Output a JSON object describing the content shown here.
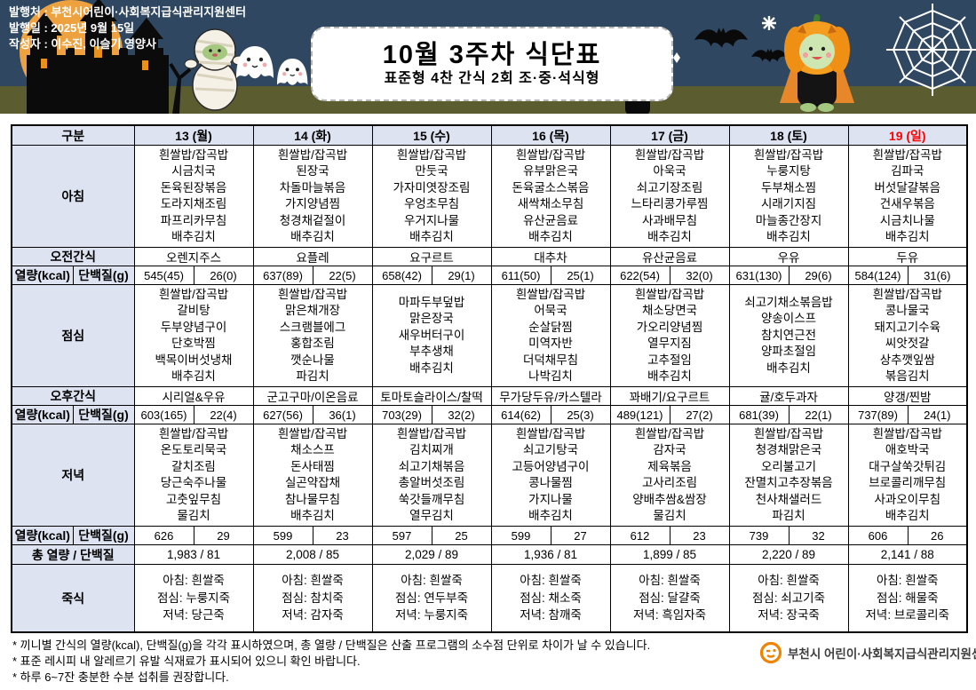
{
  "header": {
    "publisher_lines": [
      "발행처 : 부천시어린이·사회복지급식관리지원센터",
      "발행일 : 2025년 9월 15일",
      "작성자 : 이수진, 이슬기 영양사"
    ],
    "title": "10월 3주차 식단표",
    "subtitle": "표준형 4찬 간식 2회 조·중·석식형",
    "decor_icons": [
      "moon-icon",
      "castle-icon",
      "mummy-icon",
      "ghost-icon",
      "bat-icon",
      "sparkle-icon",
      "zombie-hand-icon",
      "pumpkin-character-icon",
      "spider-web-icon"
    ]
  },
  "table": {
    "corner_label": "구분",
    "row_labels": {
      "breakfast": "아침",
      "am_snack": "오전간식",
      "kcal": "열량(kcal)",
      "protein": "단백질(g)",
      "lunch": "점심",
      "pm_snack": "오후간식",
      "dinner": "저녁",
      "total": "총 열량 / 단백질",
      "porridge": "죽식"
    },
    "days": [
      {
        "label": "13 (월)",
        "is_holiday": false,
        "breakfast": [
          "흰쌀밥/잡곡밥",
          "시금치국",
          "돈육된장볶음",
          "도라지채조림",
          "파프리카무침",
          "배추김치"
        ],
        "am_snack": "오렌지주스",
        "breakfast_kcal": "545(45)",
        "breakfast_protein": "26(0)",
        "lunch": [
          "흰쌀밥/잡곡밥",
          "갈비탕",
          "두부양념구이",
          "단호박찜",
          "백목이버섯냉채",
          "배추김치"
        ],
        "pm_snack": "시리얼&우유",
        "lunch_kcal": "603(165)",
        "lunch_protein": "22(4)",
        "dinner": [
          "흰쌀밥/잡곡밥",
          "온도토리묵국",
          "갈치조림",
          "당근숙주나물",
          "고춧잎무침",
          "물김치"
        ],
        "dinner_kcal": "626",
        "dinner_protein": "29",
        "total": "1,983  /  81",
        "porridge": [
          "아침: 흰쌀죽",
          "점심: 누룽지죽",
          "저녁: 당근죽"
        ]
      },
      {
        "label": "14 (화)",
        "is_holiday": false,
        "breakfast": [
          "흰쌀밥/잡곡밥",
          "된장국",
          "차돌마늘볶음",
          "가지양념찜",
          "청경채겉절이",
          "배추김치"
        ],
        "am_snack": "요플레",
        "breakfast_kcal": "637(89)",
        "breakfast_protein": "22(5)",
        "lunch": [
          "흰쌀밥/잡곡밥",
          "맑은채개장",
          "스크램블에그",
          "홍합조림",
          "깻순나물",
          "파김치"
        ],
        "pm_snack": "군고구마/이온음료",
        "lunch_kcal": "627(56)",
        "lunch_protein": "36(1)",
        "dinner": [
          "흰쌀밥/잡곡밥",
          "채소스프",
          "돈사태찜",
          "실곤약잡채",
          "참나물무침",
          "배추김치"
        ],
        "dinner_kcal": "599",
        "dinner_protein": "23",
        "total": "2,008  /  85",
        "porridge": [
          "아침: 흰쌀죽",
          "점심: 참치죽",
          "저녁: 감자죽"
        ]
      },
      {
        "label": "15 (수)",
        "is_holiday": false,
        "breakfast": [
          "흰쌀밥/잡곡밥",
          "만둣국",
          "가자미엿장조림",
          "우엉초무침",
          "우거지나물",
          "배추김치"
        ],
        "am_snack": "요구르트",
        "breakfast_kcal": "658(42)",
        "breakfast_protein": "29(1)",
        "lunch": [
          "마파두부덮밥",
          "맑은장국",
          "새우버터구이",
          "부추생채",
          "배추김치"
        ],
        "pm_snack": "토마토슬라이스/찰떡",
        "lunch_kcal": "703(29)",
        "lunch_protein": "32(2)",
        "dinner": [
          "흰쌀밥/잡곡밥",
          "김치찌개",
          "쇠고기채볶음",
          "총알버섯조림",
          "쑥갓들깨무침",
          "열무김치"
        ],
        "dinner_kcal": "597",
        "dinner_protein": "25",
        "total": "2,029  /  89",
        "porridge": [
          "아침: 흰쌀죽",
          "점심: 연두부죽",
          "저녁: 누룽지죽"
        ]
      },
      {
        "label": "16 (목)",
        "is_holiday": false,
        "breakfast": [
          "흰쌀밥/잡곡밥",
          "유부맑은국",
          "돈육굴소스볶음",
          "새싹채소무침",
          "유산균음료",
          "배추김치"
        ],
        "am_snack": "대추차",
        "breakfast_kcal": "611(50)",
        "breakfast_protein": "25(1)",
        "lunch": [
          "흰쌀밥/잡곡밥",
          "어묵국",
          "순살닭찜",
          "미역자반",
          "더덕채무침",
          "나박김치"
        ],
        "pm_snack": "무가당두유/카스텔라",
        "lunch_kcal": "614(62)",
        "lunch_protein": "25(3)",
        "dinner": [
          "흰쌀밥/잡곡밥",
          "쇠고기탕국",
          "고등어양념구이",
          "콩나물찜",
          "가지나물",
          "배추김치"
        ],
        "dinner_kcal": "599",
        "dinner_protein": "27",
        "total": "1,936  /  81",
        "porridge": [
          "아침: 흰쌀죽",
          "점심: 채소죽",
          "저녁: 참깨죽"
        ]
      },
      {
        "label": "17 (금)",
        "is_holiday": false,
        "breakfast": [
          "흰쌀밥/잡곡밥",
          "아욱국",
          "쇠고기장조림",
          "느타리콩가루찜",
          "사과배무침",
          "배추김치"
        ],
        "am_snack": "유산균음료",
        "breakfast_kcal": "622(54)",
        "breakfast_protein": "32(0)",
        "lunch": [
          "흰쌀밥/잡곡밥",
          "채소당면국",
          "가오리양념찜",
          "열무지짐",
          "고추절임",
          "배추김치"
        ],
        "pm_snack": "꽈배기/요구르트",
        "lunch_kcal": "489(121)",
        "lunch_protein": "27(2)",
        "dinner": [
          "흰쌀밥/잡곡밥",
          "감자국",
          "제육볶음",
          "고사리조림",
          "양배추쌈&쌈장",
          "물김치"
        ],
        "dinner_kcal": "612",
        "dinner_protein": "23",
        "total": "1,899  /  85",
        "porridge": [
          "아침: 흰쌀죽",
          "점심: 달걀죽",
          "저녁: 흑임자죽"
        ]
      },
      {
        "label": "18 (토)",
        "is_holiday": false,
        "breakfast": [
          "흰쌀밥/잡곡밥",
          "누룽지탕",
          "두부채소찜",
          "시래기지짐",
          "마늘종간장지",
          "배추김치"
        ],
        "am_snack": "우유",
        "breakfast_kcal": "631(130)",
        "breakfast_protein": "29(6)",
        "lunch": [
          "쇠고기채소볶음밥",
          "양송이스프",
          "참치연근전",
          "양파초절임",
          "배추김치"
        ],
        "pm_snack": "귤/호두과자",
        "lunch_kcal": "681(39)",
        "lunch_protein": "22(1)",
        "dinner": [
          "흰쌀밥/잡곡밥",
          "청경채맑은국",
          "오리불고기",
          "잔멸치고추장볶음",
          "천사채샐러드",
          "파김치"
        ],
        "dinner_kcal": "739",
        "dinner_protein": "32",
        "total": "2,220  /  89",
        "porridge": [
          "아침: 흰쌀죽",
          "점심: 쇠고기죽",
          "저녁: 장국죽"
        ]
      },
      {
        "label": "19 (일)",
        "is_holiday": true,
        "breakfast": [
          "흰쌀밥/잡곡밥",
          "김파국",
          "버섯달걀볶음",
          "건새우볶음",
          "시금치나물",
          "배추김치"
        ],
        "am_snack": "두유",
        "breakfast_kcal": "584(124)",
        "breakfast_protein": "31(6)",
        "lunch": [
          "흰쌀밥/잡곡밥",
          "콩나물국",
          "돼지고기수육",
          "씨앗젓갈",
          "상추깻잎쌈",
          "볶음김치"
        ],
        "pm_snack": "양갱/찐밤",
        "lunch_kcal": "737(89)",
        "lunch_protein": "24(1)",
        "dinner": [
          "흰쌀밥/잡곡밥",
          "애호박국",
          "대구살쑥갓튀김",
          "브로콜리깨무침",
          "사과오이무침",
          "배추김치"
        ],
        "dinner_kcal": "606",
        "dinner_protein": "26",
        "total": "2,141  /  88",
        "porridge": [
          "아침: 흰쌀죽",
          "점심: 해물죽",
          "저녁: 브로콜리죽"
        ]
      }
    ]
  },
  "footer": {
    "notes": [
      "* 끼니별 간식의 열량(kcal), 단백질(g)을 각각 표시하였으며, 총 열량 / 단백질은 산출 프로그램의 소수점 단위로 차이가 날 수 있습니다.",
      "* 표준 레시피 내 알레르기 유발 식재료가 표시되어 있으니 확인 바랍니다.",
      "* 하루 6~7잔 충분한 수분 섭취를 권장합니다."
    ],
    "logo_text": "부천시 어린이·사회복지급식관리지원센터"
  },
  "colors": {
    "banner_bg": "#2f4760",
    "ground": "#5c5c31",
    "moon": "#eda23f",
    "table_label_bg": "#dde3f1",
    "sunday_red": "#ff0000",
    "logo_orange": "#f08300"
  }
}
